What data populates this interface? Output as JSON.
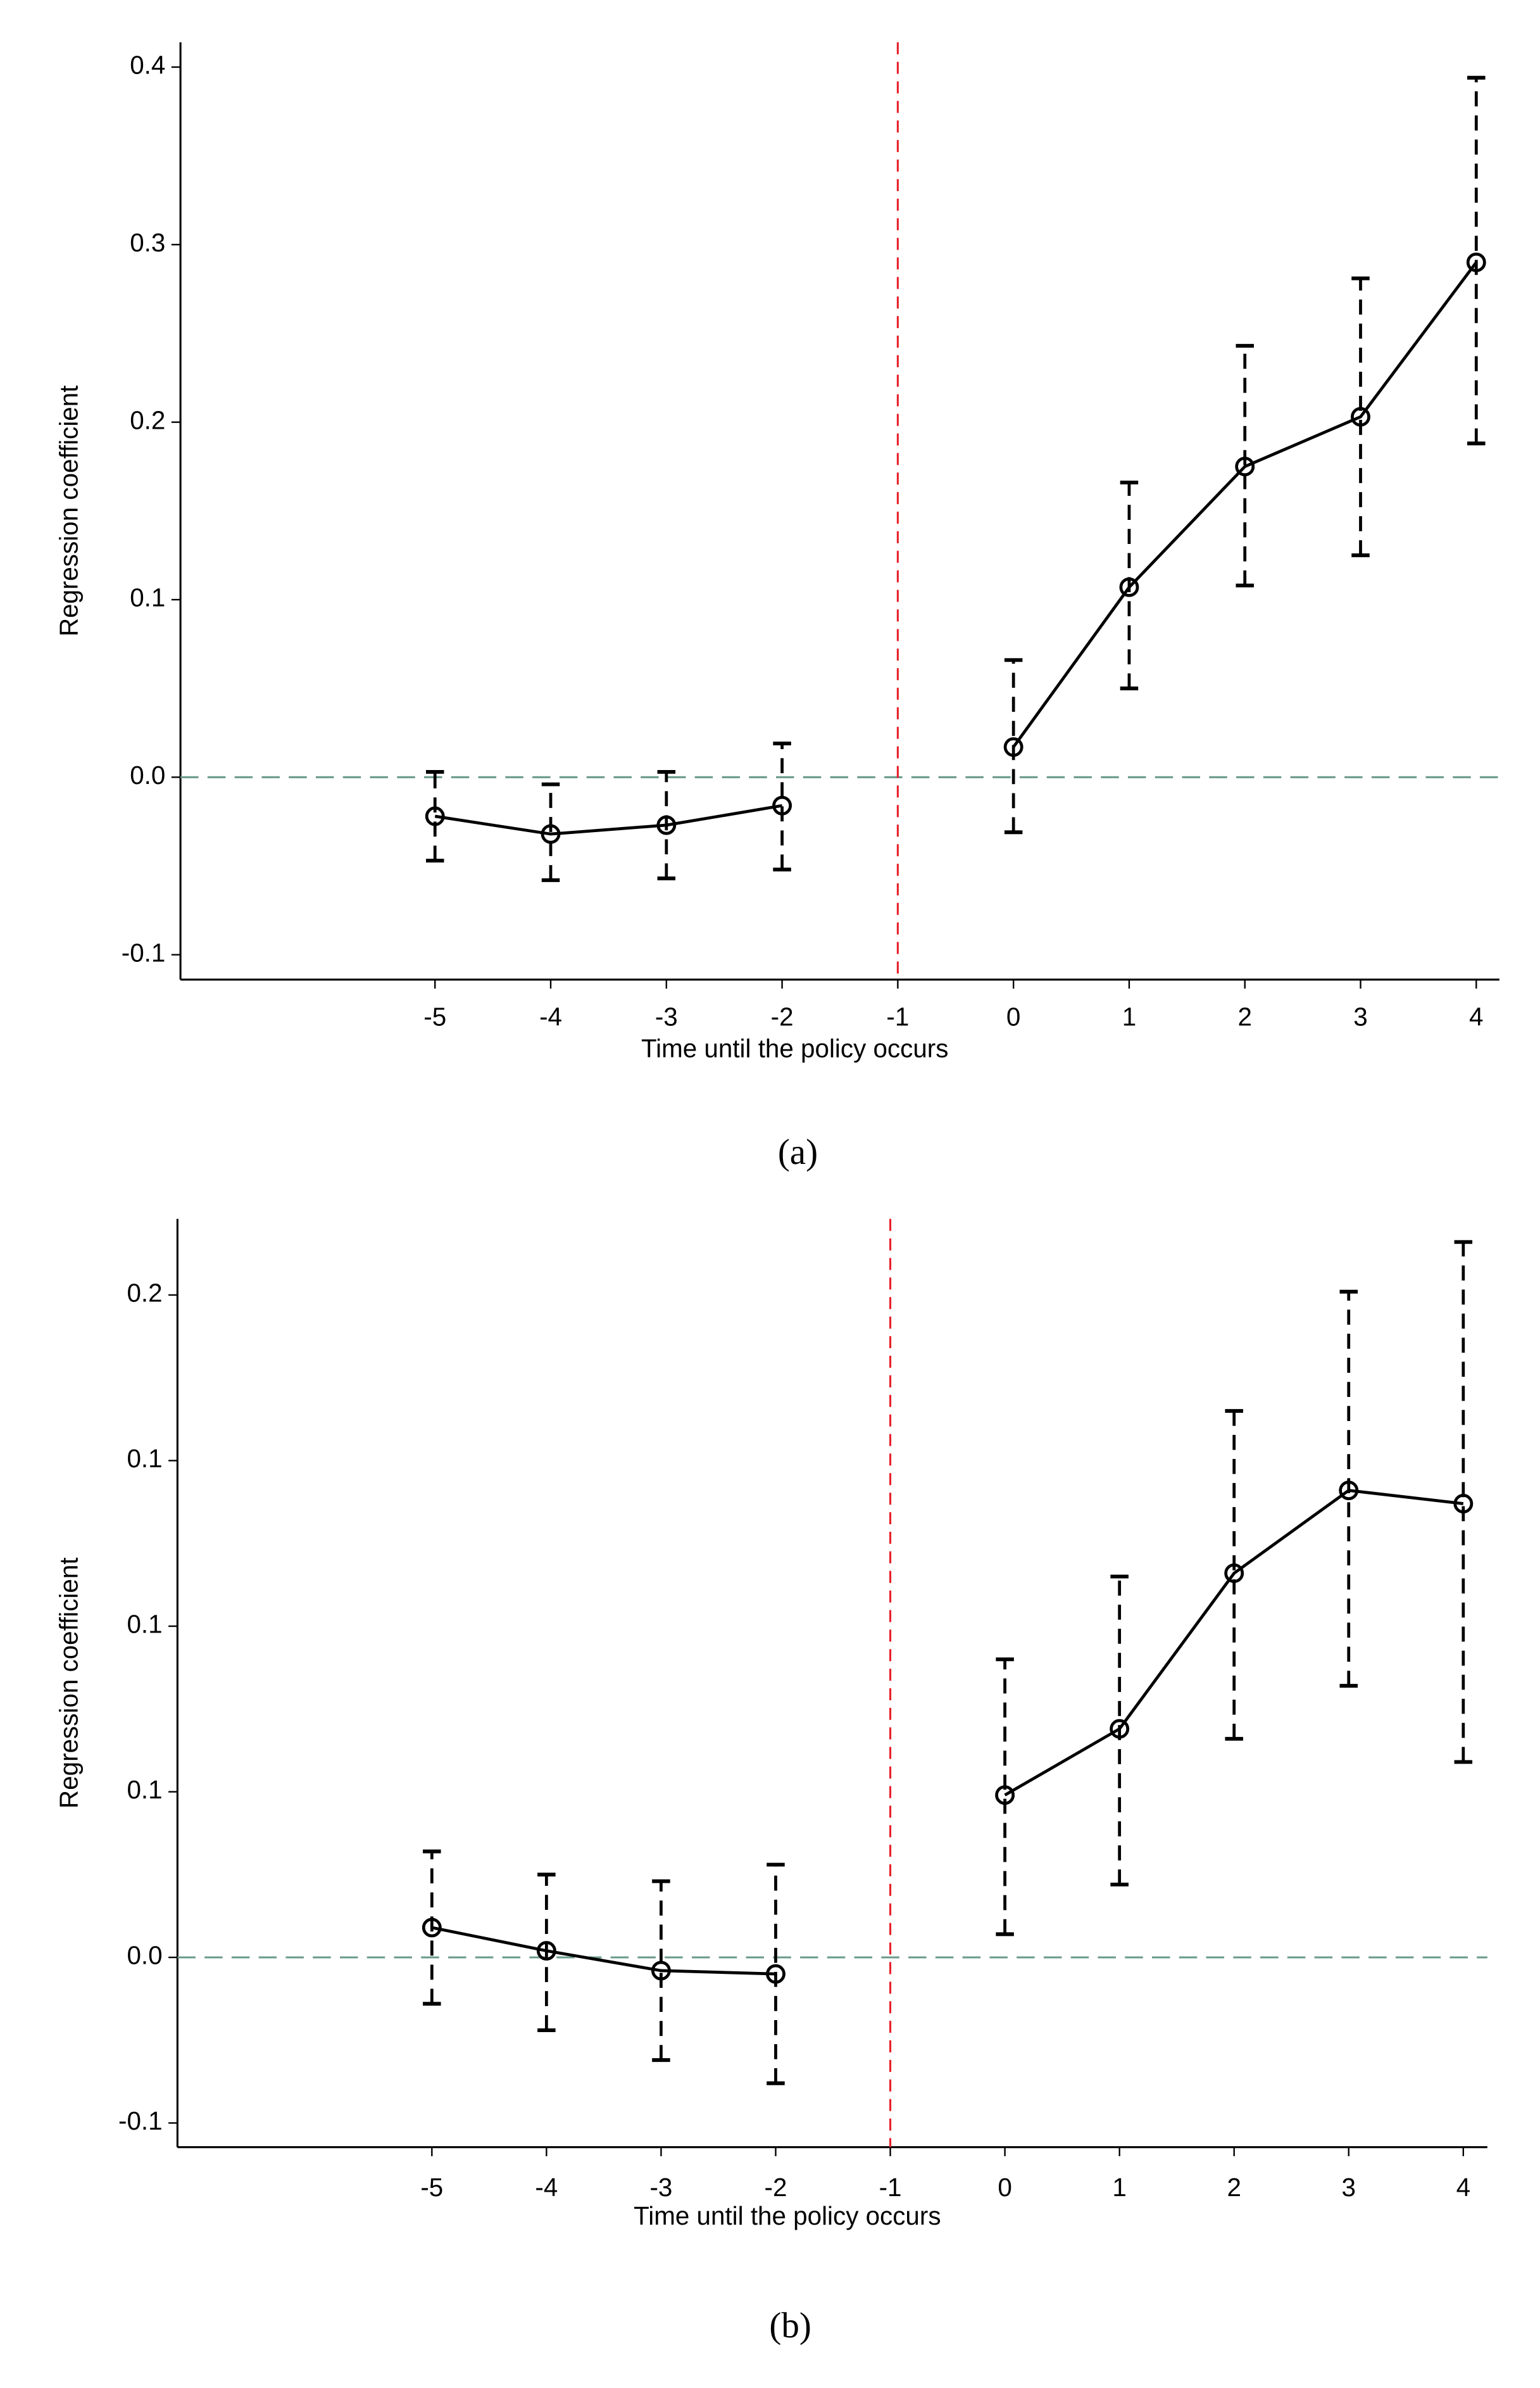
{
  "chart_data": [
    {
      "type": "line",
      "caption": "(a)",
      "x_label": "Time until the policy occurs",
      "y_label": "Regression coefficient",
      "x": [
        -5,
        -4,
        -3,
        -2,
        0,
        1,
        2,
        3,
        4
      ],
      "values": [
        -0.022,
        -0.032,
        -0.027,
        -0.016,
        0.017,
        0.107,
        0.175,
        0.203,
        0.29
      ],
      "ci_low": [
        -0.047,
        -0.058,
        -0.057,
        -0.052,
        -0.031,
        0.05,
        0.108,
        0.125,
        0.188
      ],
      "ci_high": [
        0.003,
        -0.004,
        0.003,
        0.019,
        0.066,
        0.166,
        0.243,
        0.281,
        0.394
      ],
      "color": "#000000",
      "vline": -1,
      "vline_color": "#e8202a",
      "hline": 0,
      "hline_color": "#6a9a8a",
      "xlim": [
        -7.2,
        4.2
      ],
      "xticks": [
        -5,
        -4,
        -3,
        -2,
        -1,
        0,
        1,
        2,
        3,
        4
      ],
      "ylim": [
        -0.114,
        0.414
      ],
      "yticks": [
        {
          "value": -0.1,
          "label": "-0.1"
        },
        {
          "value": 0,
          "label": "0.0"
        },
        0.1,
        0.2,
        0.3,
        0.4
      ]
    },
    {
      "type": "line",
      "caption": "(b)",
      "x_label": "Time until the policy occurs",
      "y_label": "Regression coefficient",
      "x": [
        -5,
        -4,
        -3,
        -2,
        0,
        1,
        2,
        3,
        4
      ],
      "values": [
        0.009,
        0.002,
        -0.004,
        -0.005,
        0.049,
        0.069,
        0.116,
        0.141,
        0.137
      ],
      "ci_low": [
        -0.014,
        -0.022,
        -0.031,
        -0.038,
        0.007,
        0.022,
        0.066,
        0.082,
        0.059
      ],
      "ci_high": [
        0.032,
        0.025,
        0.023,
        0.028,
        0.09,
        0.115,
        0.165,
        0.201,
        0.216
      ],
      "color": "#000000",
      "vline": -1,
      "vline_color": "#e8202a",
      "hline": 0,
      "hline_color": "#6a9a8a",
      "xlim": [
        -7.22,
        4.21
      ],
      "xticks": [
        -5,
        -4,
        -3,
        -2,
        -1,
        0,
        1,
        2,
        3,
        4
      ],
      "ylim": [
        -0.0573,
        0.223
      ],
      "yticks": [
        {
          "value": -0.05,
          "label": "-0.1"
        },
        {
          "value": 0,
          "label": "0.0"
        },
        {
          "value": 0.05,
          "label": "0.1"
        },
        {
          "value": 0.1,
          "label": "0.1"
        },
        {
          "value": 0.15,
          "label": "0.1"
        },
        {
          "value": 0.2,
          "label": "0.2"
        }
      ]
    }
  ]
}
